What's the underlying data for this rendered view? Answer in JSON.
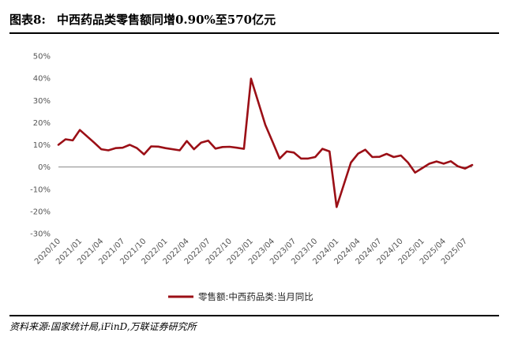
{
  "figure": {
    "label": "图表8:",
    "title": "中西药品类零售额同增0.90%至570亿元",
    "source": "资料来源:国家统计局,iFinD,万联证券研究所"
  },
  "colors": {
    "series": "#9b0f16",
    "axis": "#888888",
    "text": "#555555"
  },
  "chart_data": {
    "type": "line",
    "ylim": [
      -30,
      50
    ],
    "yticks": [
      -30,
      -20,
      -10,
      0,
      10,
      20,
      30,
      40,
      50
    ],
    "ytick_labels": [
      "-30%",
      "-20%",
      "-10%",
      "0%",
      "10%",
      "20%",
      "30%",
      "40%",
      "50%"
    ],
    "xtick_labels": [
      "2020/10",
      "2021/01",
      "2021/04",
      "2021/07",
      "2021/10",
      "2022/01",
      "2022/04",
      "2022/07",
      "2022/10",
      "2023/01",
      "2023/04",
      "2023/07",
      "2023/10",
      "2024/01",
      "2024/04",
      "2024/07",
      "2024/10",
      "2025/01",
      "2025/04",
      "2025/07"
    ],
    "x": [
      "2020/10",
      "2020/11",
      "2020/12",
      "2021/01",
      "2021/02",
      "2021/03",
      "2021/04",
      "2021/05",
      "2021/06",
      "2021/07",
      "2021/08",
      "2021/09",
      "2021/10",
      "2021/11",
      "2021/12",
      "2022/01",
      "2022/02",
      "2022/03",
      "2022/04",
      "2022/05",
      "2022/06",
      "2022/07",
      "2022/08",
      "2022/09",
      "2022/10",
      "2022/11",
      "2022/12",
      "2023/01",
      "2023/02",
      "2023/03",
      "2023/04",
      "2023/05",
      "2023/06",
      "2023/07",
      "2023/08",
      "2023/09",
      "2023/10",
      "2023/11",
      "2023/12",
      "2024/01",
      "2024/02",
      "2024/03",
      "2024/04",
      "2024/05",
      "2024/06",
      "2024/07",
      "2024/08",
      "2024/09",
      "2024/10",
      "2024/11",
      "2024/12",
      "2025/01",
      "2025/02",
      "2025/03",
      "2025/04",
      "2025/05",
      "2025/06",
      "2025/07",
      "2025/08"
    ],
    "series": [
      {
        "name": "零售额:中西药品类:当月同比",
        "values": [
          10.0,
          12.5,
          12.0,
          16.7,
          null,
          11.0,
          8.0,
          7.5,
          8.5,
          8.7,
          10.0,
          8.5,
          5.7,
          9.3,
          9.2,
          8.5,
          null,
          7.5,
          11.7,
          8.0,
          11.0,
          11.9,
          8.3,
          9.0,
          9.1,
          8.7,
          8.2,
          39.8,
          null,
          19.0,
          11.5,
          3.8,
          7.0,
          6.5,
          3.8,
          3.8,
          4.5,
          8.2,
          7.0,
          -18.0,
          null,
          2.0,
          6.0,
          7.8,
          4.5,
          4.6,
          5.9,
          4.5,
          5.2,
          2.0,
          -2.5,
          -0.5,
          1.5,
          2.5,
          1.5,
          2.6,
          0.3,
          -0.7,
          0.9
        ]
      }
    ],
    "legend": {
      "position": "bottom-center"
    },
    "grid": false
  }
}
